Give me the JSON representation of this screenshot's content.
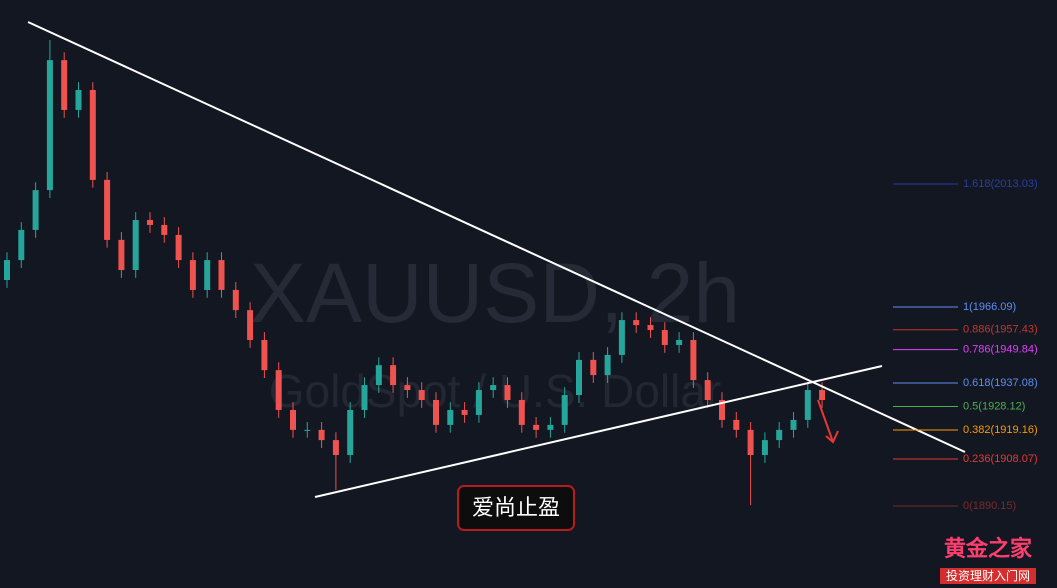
{
  "watermark": {
    "symbol": "XAUUSD, 2h",
    "description": "GoldSpot / U.S. Dollar"
  },
  "badge": "爱尚止盈",
  "logo": {
    "title": "黄金之家",
    "subtitle": "投资理财入门网"
  },
  "fib_levels": [
    {
      "value": 2013.03,
      "label": "1.618(2013.03)",
      "color": "#2a3f9e"
    },
    {
      "value": 1966.09,
      "label": "1(1966.09)",
      "color": "#5b8ff0"
    },
    {
      "value": 1957.43,
      "label": "0.886(1957.43)",
      "color": "#c0392b"
    },
    {
      "value": 1949.84,
      "label": "0.786(1949.84)",
      "color": "#e040fb"
    },
    {
      "value": 1937.08,
      "label": "0.618(1937.08)",
      "color": "#5b8ff0"
    },
    {
      "value": 1928.12,
      "label": "0.5(1928.12)",
      "color": "#4caf50"
    },
    {
      "value": 1919.16,
      "label": "0.382(1919.16)",
      "color": "#ff9800"
    },
    {
      "value": 1908.07,
      "label": "0.236(1908.07)",
      "color": "#e53935"
    },
    {
      "value": 1890.15,
      "label": "0(1890.15)",
      "color": "#7a2a2a"
    }
  ],
  "candles": {
    "open": [
      1976.4,
      1984.0,
      1995.5,
      2010.7,
      2060.3,
      2041.3,
      2048.9,
      2014.6,
      1991.7,
      1980.2,
      1999.3,
      1997.4,
      1993.6,
      1984.0,
      1972.6,
      1984.0,
      1972.6,
      1964.9,
      1953.5,
      1942.0,
      1926.8,
      1919.2,
      1919.2,
      1915.3,
      1909.6,
      1926.8,
      1936.3,
      1943.9,
      1936.3,
      1934.4,
      1930.6,
      1921.1,
      1926.8,
      1924.9,
      1934.4,
      1936.3,
      1930.6,
      1921.1,
      1919.2,
      1921.1,
      1932.5,
      1945.9,
      1940.1,
      1947.8,
      1961.1,
      1959.2,
      1957.3,
      1951.6,
      1953.5,
      1938.2,
      1930.6,
      1923.0,
      1919.2,
      1909.6,
      1915.3,
      1919.2,
      1923.0,
      1934.4
    ],
    "close": [
      1984.0,
      1995.5,
      2010.7,
      2060.3,
      2041.3,
      2048.9,
      2014.6,
      1991.7,
      1980.2,
      1999.3,
      1997.4,
      1993.6,
      1984.0,
      1972.6,
      1984.0,
      1972.6,
      1964.9,
      1953.5,
      1942.0,
      1926.8,
      1919.2,
      1919.2,
      1915.3,
      1909.6,
      1926.8,
      1936.3,
      1943.9,
      1936.3,
      1934.4,
      1930.6,
      1921.1,
      1926.8,
      1924.9,
      1934.4,
      1936.3,
      1930.6,
      1921.1,
      1919.2,
      1921.1,
      1932.5,
      1945.9,
      1940.1,
      1947.8,
      1961.1,
      1959.2,
      1957.3,
      1951.6,
      1953.5,
      1938.2,
      1930.6,
      1923.0,
      1919.2,
      1909.6,
      1915.3,
      1919.2,
      1923.0,
      1934.4,
      1930.6
    ],
    "high": [
      1987.0,
      1998.5,
      2013.7,
      2068.0,
      2063.3,
      2051.9,
      2051.9,
      2017.6,
      1994.7,
      2002.3,
      2002.3,
      2000.4,
      1996.6,
      1987.0,
      1987.0,
      1987.0,
      1975.6,
      1967.9,
      1956.5,
      1945.0,
      1929.8,
      1922.2,
      1922.2,
      1918.3,
      1929.8,
      1939.3,
      1946.9,
      1946.9,
      1939.3,
      1937.4,
      1933.6,
      1929.8,
      1929.8,
      1937.4,
      1939.3,
      1939.3,
      1933.6,
      1924.1,
      1924.1,
      1935.5,
      1948.9,
      1948.9,
      1950.8,
      1964.1,
      1964.1,
      1962.2,
      1960.3,
      1956.5,
      1956.5,
      1941.2,
      1933.6,
      1926.0,
      1922.2,
      1918.3,
      1922.2,
      1926.0,
      1937.4,
      1937.4
    ],
    "low": [
      1973.4,
      1981.0,
      1992.5,
      2007.7,
      2038.3,
      2038.3,
      2011.6,
      1988.7,
      1977.2,
      1977.2,
      1994.4,
      1990.6,
      1981.0,
      1969.6,
      1969.6,
      1969.6,
      1961.9,
      1950.5,
      1939.0,
      1923.8,
      1916.2,
      1916.2,
      1912.3,
      1896.3,
      1906.6,
      1923.8,
      1933.3,
      1933.3,
      1931.4,
      1927.6,
      1918.1,
      1918.1,
      1921.9,
      1921.9,
      1931.4,
      1927.6,
      1918.1,
      1916.2,
      1916.2,
      1918.1,
      1929.5,
      1937.1,
      1937.1,
      1944.8,
      1956.2,
      1954.3,
      1948.6,
      1948.6,
      1935.2,
      1927.6,
      1920.0,
      1916.2,
      1890.5,
      1906.6,
      1912.3,
      1916.2,
      1920.0,
      1927.6
    ]
  }
}
